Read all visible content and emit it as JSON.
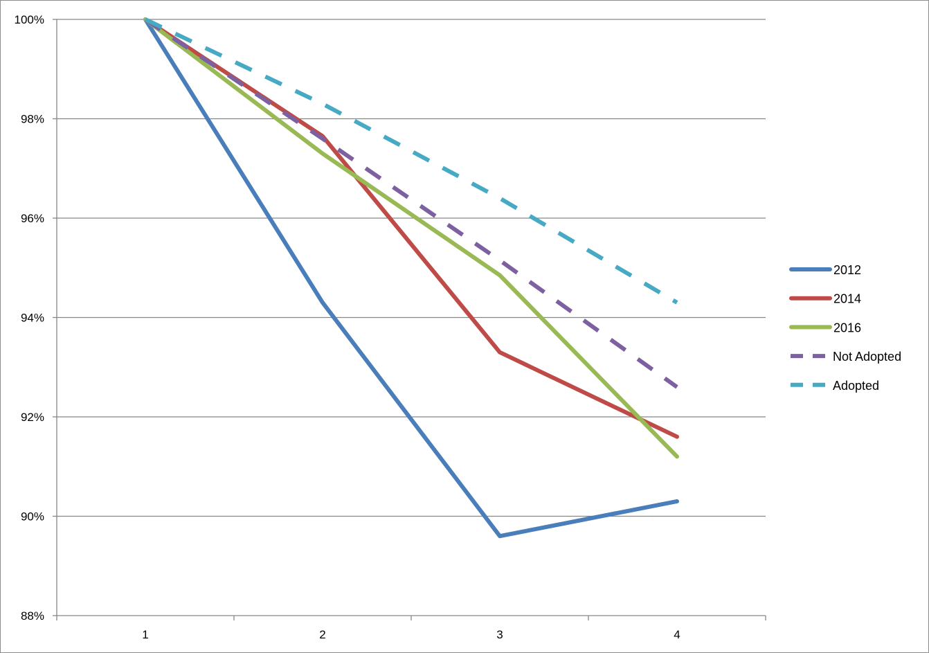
{
  "chart_data": {
    "type": "line",
    "x": [
      1,
      2,
      3,
      4
    ],
    "x_tick_labels": [
      "1",
      "2",
      "3",
      "4"
    ],
    "y_tick_labels": [
      "88%",
      "90%",
      "92%",
      "94%",
      "96%",
      "98%",
      "100%"
    ],
    "ylim": [
      88,
      100
    ],
    "y_unit": "%",
    "grid": "horizontal",
    "legend_position": "right",
    "title": "",
    "xlabel": "",
    "ylabel": "",
    "series": [
      {
        "name": "2012",
        "values": [
          100,
          94.3,
          89.6,
          90.3
        ],
        "color": "#4a7ebb",
        "dash": "solid"
      },
      {
        "name": "2014",
        "values": [
          100,
          97.65,
          93.3,
          91.6
        ],
        "color": "#be4b48",
        "dash": "solid"
      },
      {
        "name": "2016",
        "values": [
          100,
          97.3,
          94.85,
          91.2
        ],
        "color": "#98b954",
        "dash": "solid"
      },
      {
        "name": "Not Adopted",
        "values": [
          100,
          97.6,
          95.15,
          92.6
        ],
        "color": "#7d60a0",
        "dash": "dashed"
      },
      {
        "name": "Adopted",
        "values": [
          100,
          98.3,
          96.4,
          94.3
        ],
        "color": "#46aac5",
        "dash": "dashed"
      }
    ]
  }
}
